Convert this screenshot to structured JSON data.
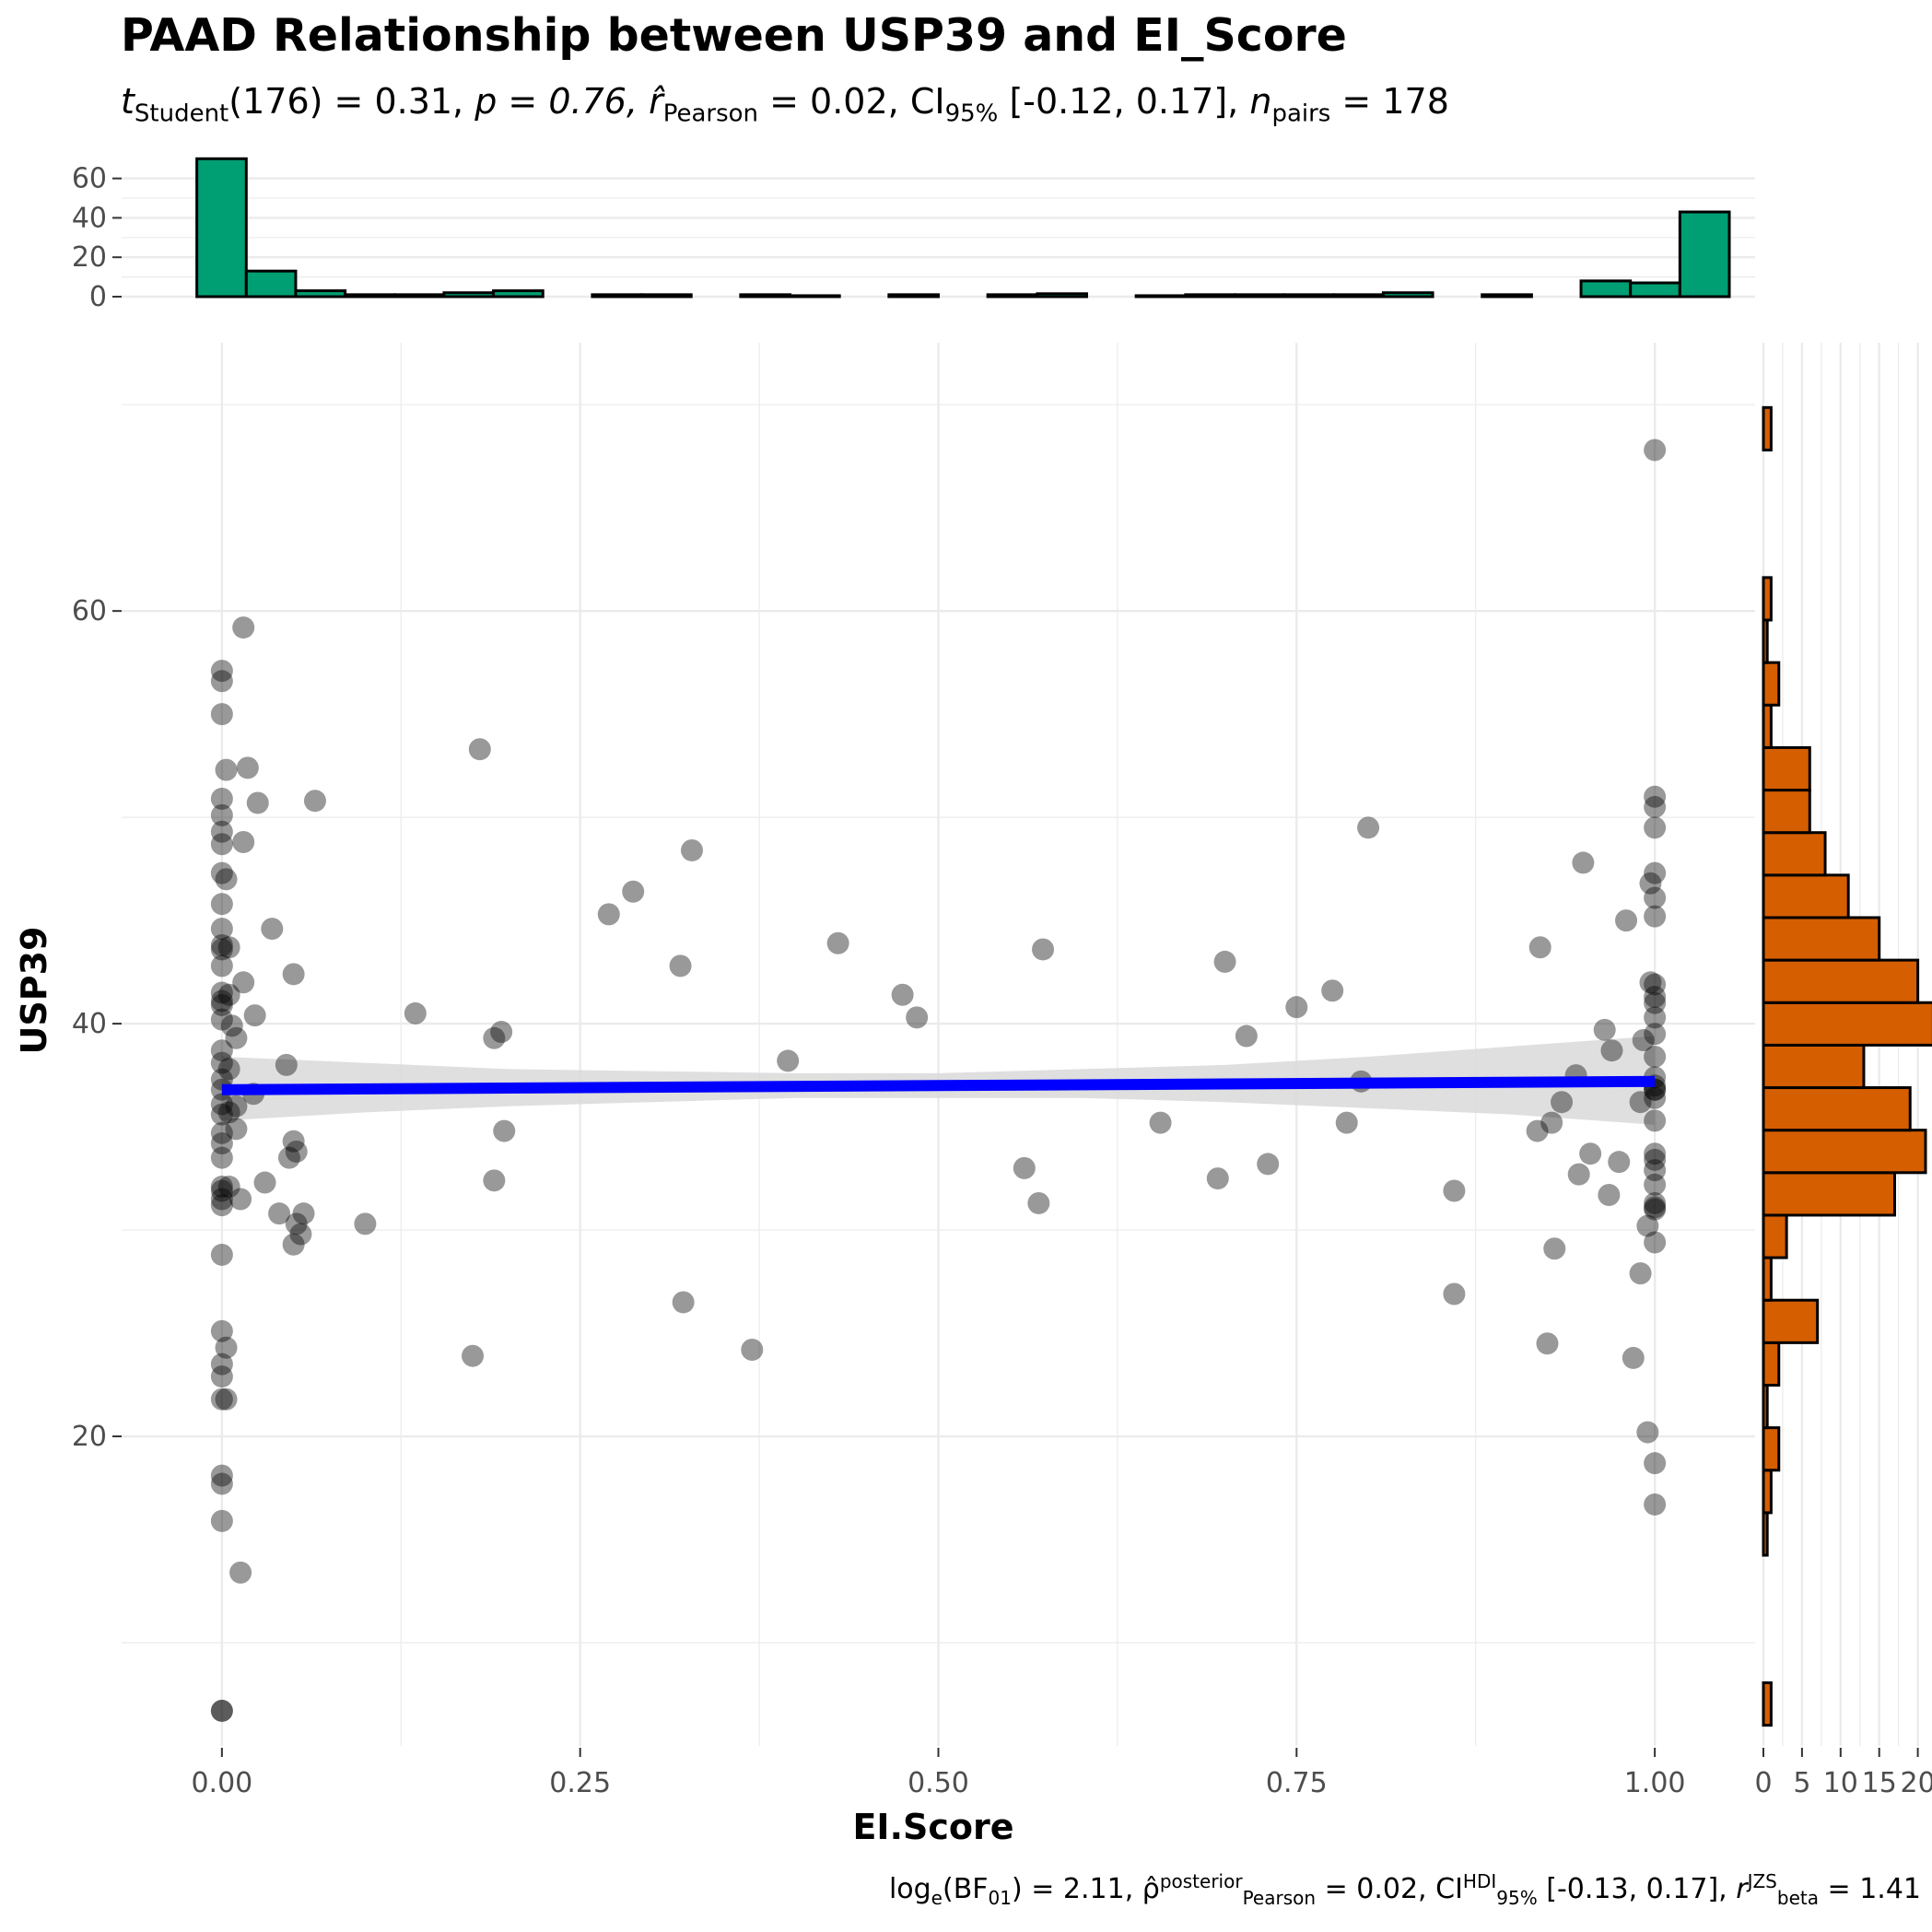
{
  "title": "PAAD Relationship between USP39 and EI_Score",
  "subtitle": {
    "t_label": "t",
    "t_sub": "Student",
    "t_value": "(176) = 0.31, ",
    "p": "p = 0.76, ",
    "r_label": "r̂",
    "r_sub": "Pearson",
    "r_value": " = 0.02, CI",
    "ci_sub": "95%",
    "ci_value": " [-0.12, 0.17], ",
    "n_label": "n",
    "n_sub": "pairs",
    "n_value": " = 178"
  },
  "caption": {
    "log": "log",
    "log_sub": "e",
    "bf": "(BF",
    "bf_sub": "01",
    "bf_value": ") = 2.11, ",
    "rho": "ρ̂",
    "rho_sup": "posterior",
    "rho_sub": "Pearson",
    "rho_value": " = 0.02, CI",
    "ci_sup": "HDI",
    "ci_sub": "95%",
    "ci_value": " [-0.13, 0.17], ",
    "r": "r",
    "r_sup": "JZS",
    "r_sub": "beta",
    "r_value": " = 1.41"
  },
  "colors": {
    "points": "#000000",
    "fit_line": "#0000ff",
    "ci_band": "#d9d9d9",
    "top_hist": "#009e73",
    "right_hist": "#d55e00",
    "grid": "#ebebeb"
  },
  "chart_data": {
    "type": "scatter",
    "xlabel": "EI.Score",
    "ylabel": "USP39",
    "xlim": [
      -0.07,
      1.07
    ],
    "ylim": [
      5.0,
      73.0
    ],
    "x_ticks": [
      "0.00",
      "0.25",
      "0.50",
      "0.75",
      "1.00"
    ],
    "x_tick_values": [
      0,
      0.25,
      0.5,
      0.75,
      1.0
    ],
    "y_ticks": [
      "20",
      "40",
      "60"
    ],
    "y_tick_values": [
      20,
      40,
      60
    ],
    "grid": true,
    "points": [
      [
        0.0,
        6.7
      ],
      [
        0.0,
        6.7
      ],
      [
        0.0,
        15.9
      ],
      [
        0.0,
        17.7
      ],
      [
        0.0,
        18.1
      ],
      [
        0.0,
        21.8
      ],
      [
        0.0,
        22.9
      ],
      [
        0.0,
        23.5
      ],
      [
        0.0,
        25.1
      ],
      [
        0.0,
        28.8
      ],
      [
        0.0,
        31.2
      ],
      [
        0.0,
        31.5
      ],
      [
        0.0,
        31.9
      ],
      [
        0.0,
        32.1
      ],
      [
        0.0,
        33.5
      ],
      [
        0.0,
        34.2
      ],
      [
        0.0,
        34.7
      ],
      [
        0.0,
        35.6
      ],
      [
        0.0,
        36.1
      ],
      [
        0.0,
        36.8
      ],
      [
        0.0,
        37.3
      ],
      [
        0.0,
        38.1
      ],
      [
        0.0,
        38.7
      ],
      [
        0.0,
        40.2
      ],
      [
        0.0,
        40.9
      ],
      [
        0.0,
        41.1
      ],
      [
        0.0,
        41.5
      ],
      [
        0.0,
        42.8
      ],
      [
        0.0,
        43.6
      ],
      [
        0.0,
        43.8
      ],
      [
        0.0,
        44.6
      ],
      [
        0.0,
        45.8
      ],
      [
        0.0,
        47.3
      ],
      [
        0.0,
        48.7
      ],
      [
        0.0,
        49.3
      ],
      [
        0.0,
        50.1
      ],
      [
        0.0,
        50.9
      ],
      [
        0.0,
        55.0
      ],
      [
        0.0,
        56.6
      ],
      [
        0.0,
        57.1
      ],
      [
        0.003,
        24.3
      ],
      [
        0.003,
        21.8
      ],
      [
        0.003,
        47.0
      ],
      [
        0.003,
        52.3
      ],
      [
        0.005,
        43.7
      ],
      [
        0.005,
        41.4
      ],
      [
        0.005,
        37.8
      ],
      [
        0.005,
        35.7
      ],
      [
        0.005,
        32.1
      ],
      [
        0.007,
        39.9
      ],
      [
        0.01,
        36.0
      ],
      [
        0.01,
        34.9
      ],
      [
        0.01,
        39.3
      ],
      [
        0.013,
        31.5
      ],
      [
        0.013,
        13.4
      ],
      [
        0.015,
        59.2
      ],
      [
        0.015,
        48.8
      ],
      [
        0.015,
        42.0
      ],
      [
        0.018,
        52.4
      ],
      [
        0.022,
        36.6
      ],
      [
        0.023,
        40.4
      ],
      [
        0.025,
        50.7
      ],
      [
        0.03,
        32.3
      ],
      [
        0.035,
        44.6
      ],
      [
        0.04,
        30.8
      ],
      [
        0.045,
        38.0
      ],
      [
        0.047,
        33.5
      ],
      [
        0.05,
        29.3
      ],
      [
        0.05,
        34.3
      ],
      [
        0.052,
        33.8
      ],
      [
        0.05,
        42.4
      ],
      [
        0.052,
        30.3
      ],
      [
        0.055,
        29.8
      ],
      [
        0.057,
        30.8
      ],
      [
        0.065,
        50.8
      ],
      [
        0.1,
        30.3
      ],
      [
        0.135,
        40.5
      ],
      [
        0.175,
        23.9
      ],
      [
        0.18,
        53.3
      ],
      [
        0.19,
        39.3
      ],
      [
        0.19,
        32.4
      ],
      [
        0.195,
        39.6
      ],
      [
        0.197,
        34.8
      ],
      [
        0.27,
        45.3
      ],
      [
        0.287,
        46.4
      ],
      [
        0.32,
        42.8
      ],
      [
        0.322,
        26.5
      ],
      [
        0.328,
        48.4
      ],
      [
        0.37,
        24.2
      ],
      [
        0.395,
        38.2
      ],
      [
        0.43,
        43.9
      ],
      [
        0.475,
        41.4
      ],
      [
        0.485,
        40.3
      ],
      [
        0.56,
        33.0
      ],
      [
        0.57,
        31.3
      ],
      [
        0.573,
        43.6
      ],
      [
        0.655,
        35.2
      ],
      [
        0.695,
        32.5
      ],
      [
        0.7,
        43.0
      ],
      [
        0.715,
        39.4
      ],
      [
        0.73,
        33.2
      ],
      [
        0.75,
        40.8
      ],
      [
        0.775,
        41.6
      ],
      [
        0.785,
        35.2
      ],
      [
        0.795,
        37.2
      ],
      [
        0.8,
        49.5
      ],
      [
        0.86,
        31.9
      ],
      [
        0.86,
        26.9
      ],
      [
        0.92,
        43.7
      ],
      [
        0.925,
        24.5
      ],
      [
        0.918,
        34.8
      ],
      [
        0.928,
        35.2
      ],
      [
        0.93,
        29.1
      ],
      [
        0.935,
        36.2
      ],
      [
        0.945,
        37.5
      ],
      [
        0.95,
        47.8
      ],
      [
        0.947,
        32.7
      ],
      [
        0.955,
        33.7
      ],
      [
        0.965,
        39.7
      ],
      [
        0.97,
        38.7
      ],
      [
        0.968,
        31.7
      ],
      [
        0.975,
        33.3
      ],
      [
        0.98,
        45.0
      ],
      [
        0.985,
        23.8
      ],
      [
        0.99,
        27.9
      ],
      [
        0.99,
        36.2
      ],
      [
        0.992,
        39.2
      ],
      [
        0.995,
        20.2
      ],
      [
        0.995,
        30.2
      ],
      [
        0.997,
        42.0
      ],
      [
        0.997,
        46.8
      ],
      [
        1.0,
        16.7
      ],
      [
        1.0,
        18.7
      ],
      [
        1.0,
        29.4
      ],
      [
        1.0,
        31.0
      ],
      [
        1.0,
        31.3
      ],
      [
        1.0,
        32.2
      ],
      [
        1.0,
        32.9
      ],
      [
        1.0,
        33.4
      ],
      [
        1.0,
        33.7
      ],
      [
        1.0,
        35.3
      ],
      [
        1.0,
        36.4
      ],
      [
        1.0,
        36.8
      ],
      [
        1.0,
        37.4
      ],
      [
        1.0,
        38.4
      ],
      [
        1.0,
        39.5
      ],
      [
        1.0,
        40.3
      ],
      [
        1.0,
        41.0
      ],
      [
        1.0,
        41.3
      ],
      [
        1.0,
        41.9
      ],
      [
        1.0,
        45.2
      ],
      [
        1.0,
        46.1
      ],
      [
        1.0,
        47.3
      ],
      [
        1.0,
        49.5
      ],
      [
        1.0,
        50.5
      ],
      [
        1.0,
        51.0
      ],
      [
        1.0,
        67.8
      ],
      [
        1.0,
        36.8
      ],
      [
        1.0,
        37.0
      ],
      [
        1.0,
        31.1
      ]
    ],
    "fit": {
      "x": [
        0.0,
        1.0
      ],
      "y": [
        36.8,
        37.2
      ]
    },
    "ci_band": {
      "x": [
        0.0,
        0.1,
        0.2,
        0.3,
        0.4,
        0.5,
        0.6,
        0.7,
        0.8,
        0.9,
        1.0
      ],
      "lower": [
        35.3,
        35.7,
        36.0,
        36.2,
        36.4,
        36.4,
        36.4,
        36.2,
        35.9,
        35.6,
        35.1
      ],
      "upper": [
        38.4,
        38.1,
        37.8,
        37.7,
        37.6,
        37.6,
        37.8,
        38.0,
        38.4,
        38.9,
        39.4
      ]
    },
    "top_histogram": {
      "bin_width": 0.0345,
      "start": -0.0175,
      "counts": [
        70,
        13,
        3,
        1,
        1,
        2,
        3,
        0,
        1,
        1,
        0,
        1,
        0.5,
        0,
        1,
        0,
        1,
        1.5,
        0,
        0.5,
        1,
        1,
        1,
        1,
        2,
        0,
        1,
        0,
        8,
        7,
        43
      ],
      "ylim": [
        0,
        72
      ],
      "ticks": [
        "0",
        "20",
        "40",
        "60"
      ],
      "tick_values": [
        0,
        20,
        40,
        60
      ]
    },
    "right_histogram": {
      "bin_width": 2.06,
      "start": 6.0,
      "counts": [
        1,
        0,
        0,
        0,
        0.5,
        1,
        2,
        0.5,
        2,
        7,
        1,
        3,
        17,
        21,
        19,
        13,
        22,
        20,
        15,
        11,
        8,
        6,
        6,
        1,
        2,
        0.5,
        1,
        0,
        0,
        0,
        1
      ],
      "xlim": [
        0,
        21
      ],
      "ticks": [
        "0",
        "5",
        "10",
        "15",
        "20"
      ],
      "tick_values": [
        0,
        5,
        10,
        15,
        20
      ]
    }
  }
}
